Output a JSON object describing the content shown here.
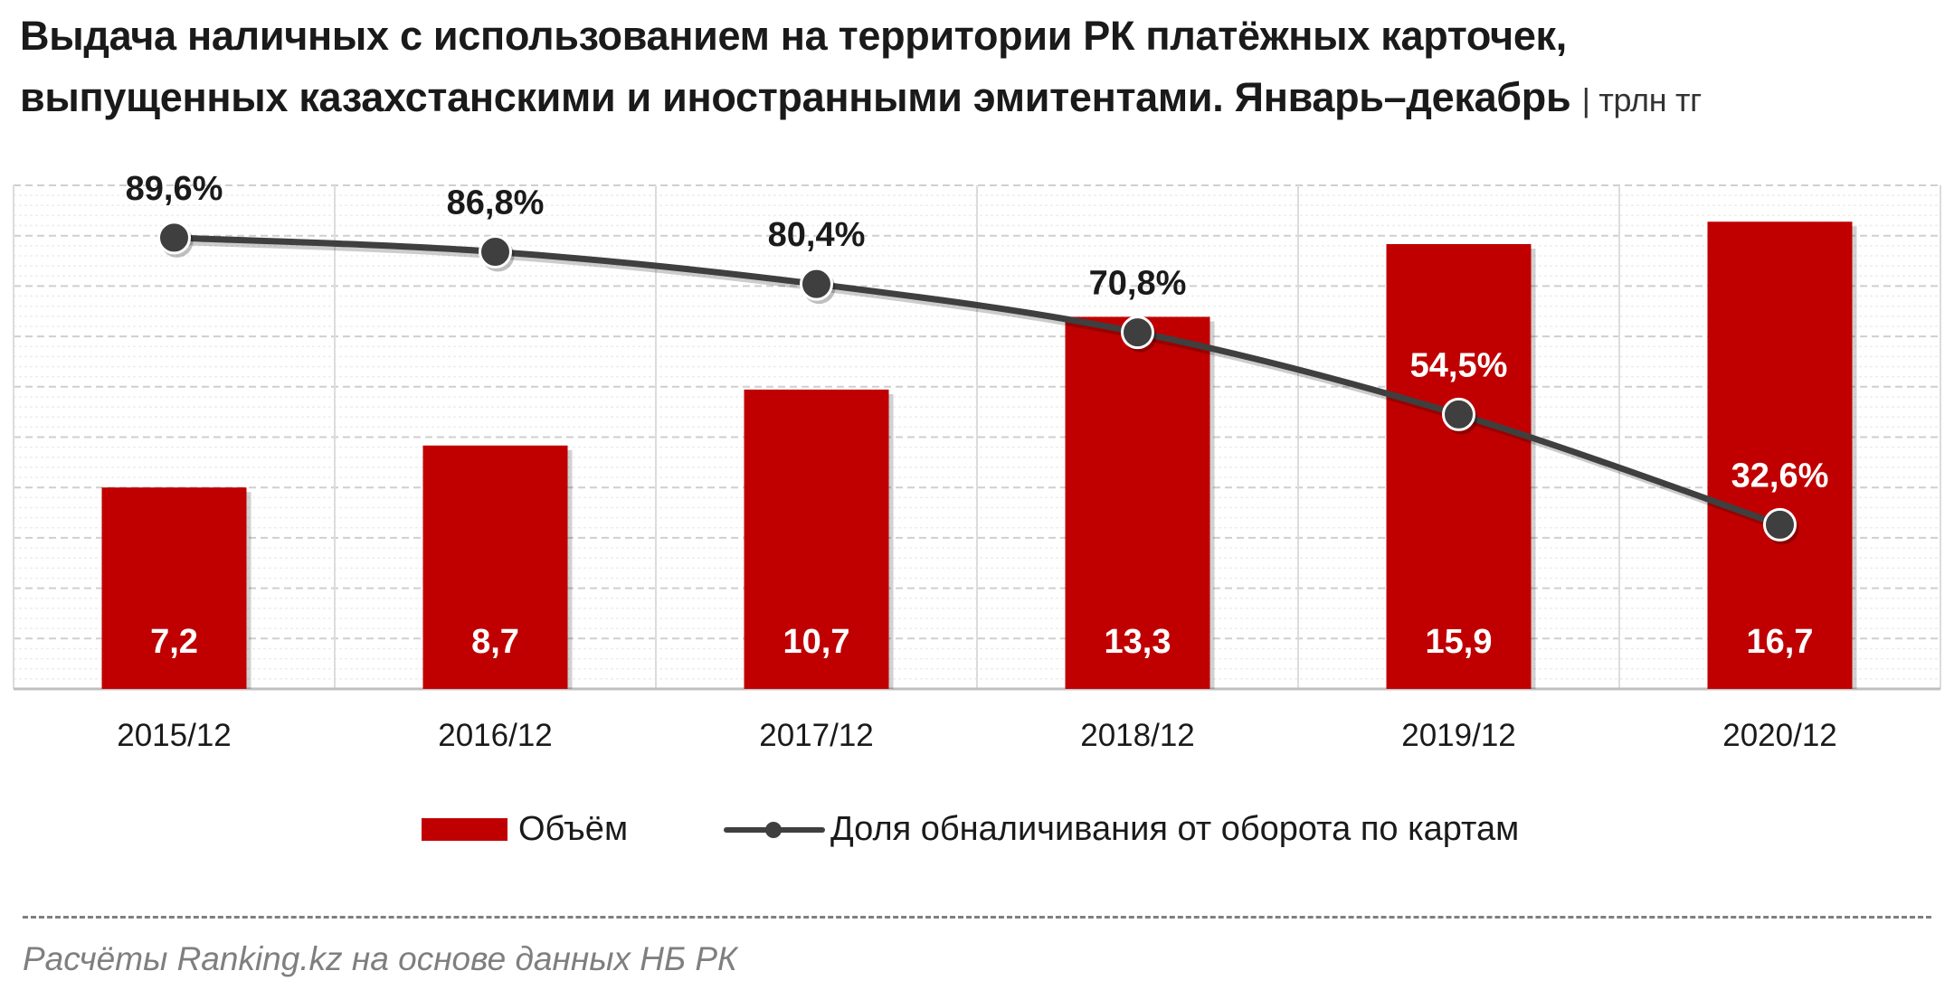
{
  "title": {
    "line1": "Выдача наличных с использованием на территории РК платёжных  карточек,",
    "line2": "выпущенных казахстанскими и иностранными эмитентами. Январь–декабрь",
    "unit": "| трлн тг"
  },
  "chart_data": {
    "type": "bar",
    "categories": [
      "2015/12",
      "2016/12",
      "2017/12",
      "2018/12",
      "2019/12",
      "2020/12"
    ],
    "series": [
      {
        "name": "Объём",
        "type": "bar",
        "values": [
          7.2,
          8.7,
          10.7,
          13.3,
          15.9,
          16.7
        ],
        "labels": [
          "7,2",
          "8,7",
          "10,7",
          "13,3",
          "15,9",
          "16,7"
        ],
        "color": "#c00000"
      },
      {
        "name": "Доля обналичивания от оборота по картам",
        "type": "line",
        "values": [
          89.6,
          86.8,
          80.4,
          70.8,
          54.5,
          32.6
        ],
        "labels": [
          "89,6%",
          "86,8%",
          "80,4%",
          "70,8%",
          "54,5%",
          "32,6%"
        ],
        "color": "#3f3f3f"
      }
    ],
    "ylim_bar": [
      0,
      18
    ],
    "ylim_line": [
      0,
      100
    ],
    "grid": true,
    "legend_position": "bottom"
  },
  "legend": {
    "bar_label": "Объём",
    "line_label": "Доля обналичивания от оборота по картам"
  },
  "source": "Расчёты Ranking.kz на основе данных  НБ РК"
}
